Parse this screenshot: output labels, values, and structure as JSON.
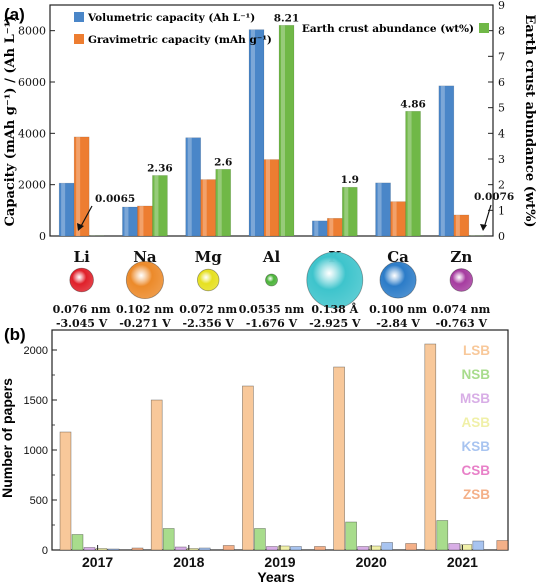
{
  "chart_data": [
    {
      "panel_label": "(a)",
      "type": "bar",
      "categories": [
        "Li",
        "Na",
        "Mg",
        "Al",
        "K",
        "Ca",
        "Zn"
      ],
      "ylabel": "Capacity (mAh g⁻¹) / (Ah L⁻¹)",
      "ylabel_right": "Earth crust abundance (wt%)",
      "ylim": [
        0,
        9000
      ],
      "ylim_right": [
        0,
        9
      ],
      "yticks": [
        "0",
        "2000",
        "4000",
        "6000",
        "8000"
      ],
      "yticks_right": [
        "0",
        "1",
        "2",
        "3",
        "4",
        "5",
        "6",
        "7",
        "8",
        "9"
      ],
      "series": [
        {
          "name": "Volumetric capacity (Ah L⁻¹)",
          "color": "#4a86c8",
          "axis": "left",
          "values": [
            2060,
            1130,
            3830,
            8040,
            590,
            2070,
            5850
          ]
        },
        {
          "name": "Gravimetric capacity (mAh g⁻¹)",
          "color": "#ed7d31",
          "axis": "left",
          "values": [
            3860,
            1170,
            2200,
            2980,
            690,
            1340,
            820
          ]
        },
        {
          "name": "Earth crust abundance (wt%)",
          "color": "#70b847",
          "axis": "right",
          "values": [
            0.0065,
            2.36,
            2.6,
            8.21,
            1.9,
            4.86,
            0.0076
          ],
          "labels": [
            "0.0065",
            "2.36",
            "2.6",
            "8.21",
            "1.9",
            "4.86",
            "0.0076"
          ]
        }
      ],
      "ion_radius": [
        "0.076 nm",
        "0.102 nm",
        "0.072 nm",
        "0.0535 nm",
        "0.138 Å",
        "0.100 nm",
        "0.074 nm"
      ],
      "potential": [
        "-3.045 V",
        "-0.271 V",
        "-2.356 V",
        "-1.676 V",
        "-2.925 V",
        "-2.84 V",
        "-0.763 V"
      ],
      "ion_colors": [
        "#e0202a",
        "#ec8a2a",
        "#e6e020",
        "#4cb43a",
        "#3ec4cc",
        "#2c7cc8",
        "#a63ca0"
      ],
      "ion_radius_values": [
        0.076,
        0.102,
        0.072,
        0.0535,
        0.138,
        0.1,
        0.074
      ]
    },
    {
      "panel_label": "(b)",
      "type": "bar",
      "categories": [
        "2017",
        "2018",
        "2019",
        "2020",
        "2021"
      ],
      "xlabel": "Years",
      "ylabel": "Number of papers",
      "ylim": [
        0,
        2200
      ],
      "yticks": [
        "0",
        "500",
        "1000",
        "1500",
        "2000"
      ],
      "series": [
        {
          "name": "LSB",
          "color": "#f8c89a",
          "values": [
            1180,
            1500,
            1640,
            1830,
            2060
          ]
        },
        {
          "name": "NSB",
          "color": "#a8dc8c",
          "values": [
            155,
            215,
            215,
            280,
            295
          ]
        },
        {
          "name": "MSB",
          "color": "#d8aee6",
          "values": [
            25,
            30,
            35,
            35,
            65
          ]
        },
        {
          "name": "ASB",
          "color": "#f0f0a8",
          "values": [
            15,
            15,
            40,
            40,
            55
          ]
        },
        {
          "name": "KSB",
          "color": "#a8c4f0",
          "values": [
            10,
            20,
            35,
            75,
            90
          ]
        },
        {
          "name": "CSB",
          "color": "#e880c8",
          "values": [
            0,
            0,
            0,
            0,
            0
          ]
        },
        {
          "name": "ZSB",
          "color": "#f4b088",
          "values": [
            20,
            45,
            35,
            65,
            95
          ]
        }
      ]
    }
  ]
}
